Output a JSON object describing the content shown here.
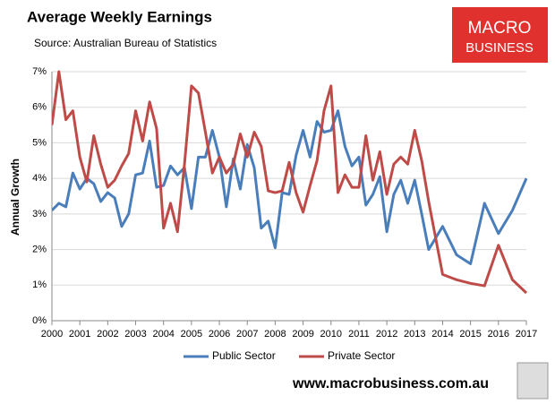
{
  "chart_data": {
    "type": "line",
    "title": "Average Weekly Earnings",
    "subtitle": "Source: Australian Bureau of Statistics",
    "y_label": "Annual Growth",
    "brand": [
      "MACRO",
      "BUSINESS"
    ],
    "footer": "www.macrobusiness.com.au",
    "x": [
      2000,
      2000.25,
      2000.5,
      2000.75,
      2001,
      2001.25,
      2001.5,
      2001.75,
      2002,
      2002.25,
      2002.5,
      2002.75,
      2003,
      2003.25,
      2003.5,
      2003.75,
      2004,
      2004.25,
      2004.5,
      2004.75,
      2005,
      2005.25,
      2005.5,
      2005.75,
      2006,
      2006.25,
      2006.5,
      2006.75,
      2007,
      2007.25,
      2007.5,
      2007.75,
      2008,
      2008.25,
      2008.5,
      2008.75,
      2009,
      2009.25,
      2009.5,
      2009.75,
      2010,
      2010.25,
      2010.5,
      2010.75,
      2011,
      2011.25,
      2011.5,
      2011.75,
      2012,
      2012.25,
      2012.5,
      2012.75,
      2013,
      2013.25,
      2013.5,
      2014,
      2014.5,
      2015,
      2015.5,
      2016,
      2016.5,
      2017
    ],
    "series": [
      {
        "name": "Public Sector",
        "color": "#4a7ebb",
        "values": [
          3.1,
          3.3,
          3.2,
          4.15,
          3.7,
          4.0,
          3.85,
          3.35,
          3.6,
          3.45,
          2.65,
          3.0,
          4.1,
          4.15,
          5.05,
          3.75,
          3.8,
          4.35,
          4.1,
          4.3,
          3.15,
          4.6,
          4.6,
          5.35,
          4.6,
          3.2,
          4.55,
          3.7,
          4.95,
          4.3,
          2.6,
          2.8,
          2.05,
          3.6,
          3.55,
          4.65,
          5.35,
          4.6,
          5.6,
          5.3,
          5.35,
          5.9,
          4.9,
          4.35,
          4.6,
          3.25,
          3.55,
          4.05,
          2.5,
          3.55,
          3.95,
          3.3,
          3.95,
          3.0,
          2.0,
          2.65,
          1.85,
          1.6,
          3.3,
          2.45,
          3.1,
          4.0
        ]
      },
      {
        "name": "Private Sector",
        "color": "#be4b48",
        "values": [
          5.5,
          7.0,
          5.65,
          5.9,
          4.6,
          3.9,
          5.2,
          4.4,
          3.75,
          3.95,
          4.35,
          4.7,
          5.9,
          5.05,
          6.15,
          5.4,
          2.6,
          3.3,
          2.5,
          4.4,
          6.6,
          6.4,
          5.3,
          4.15,
          4.6,
          4.15,
          4.4,
          5.25,
          4.6,
          5.3,
          4.9,
          3.65,
          3.6,
          3.65,
          4.45,
          3.6,
          3.05,
          3.8,
          4.5,
          5.9,
          6.6,
          3.6,
          4.1,
          3.75,
          3.75,
          5.2,
          3.95,
          4.75,
          3.55,
          4.4,
          4.6,
          4.4,
          5.35,
          4.5,
          3.35,
          1.3,
          1.15,
          1.05,
          0.98,
          2.12,
          1.15,
          0.78
        ]
      }
    ],
    "xlim": [
      2000,
      2017
    ],
    "xticks": [
      2000,
      2001,
      2002,
      2003,
      2004,
      2005,
      2006,
      2007,
      2008,
      2009,
      2010,
      2011,
      2012,
      2013,
      2014,
      2015,
      2016,
      2017
    ],
    "ylim": [
      0,
      7
    ],
    "yticks": [
      {
        "value": 0,
        "label": "0%"
      },
      {
        "value": 1,
        "label": "1%"
      },
      {
        "value": 2,
        "label": "2%"
      },
      {
        "value": 3,
        "label": "3%"
      },
      {
        "value": 4,
        "label": "4%"
      },
      {
        "value": 5,
        "label": "5%"
      },
      {
        "value": 6,
        "label": "6%"
      },
      {
        "value": 7,
        "label": "7%"
      }
    ],
    "grid": true,
    "legend": "bottom"
  }
}
